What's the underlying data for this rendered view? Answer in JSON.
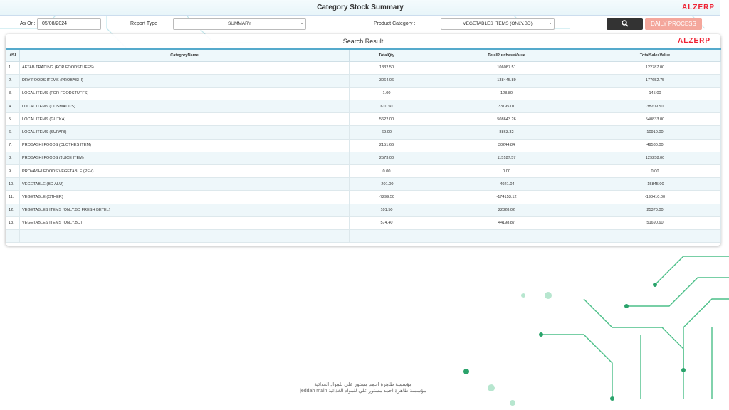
{
  "header": {
    "title": "Category Stock Summary",
    "logo": "ALZERP"
  },
  "filters": {
    "as_on_label": "As On:",
    "as_on_value": "05/08/2024",
    "report_type_label": "Report Type",
    "report_type_value": "SUMMARY",
    "product_category_label": "Product Category :",
    "product_category_value": "VEGETABLES ITEMS (ONLY.BD)",
    "daily_process": "DAILY PROCESS"
  },
  "panel": {
    "title": "Search Result",
    "logo": "ALZERP"
  },
  "table": {
    "columns": [
      "#Sl",
      "CategoryName",
      "TotalQty",
      "TotalPurchaseValue",
      "TotalSalesValue"
    ],
    "rows": [
      [
        "1.",
        "AFTAB TRADING (FOR FOODSTUFFS)",
        "1332.50",
        "106087.51",
        "122787.00"
      ],
      [
        "2.",
        "DRY FOODS ITEMS (PROBASHI)",
        "3064.06",
        "138445.89",
        "177652.75"
      ],
      [
        "3.",
        "LOCAL ITEMS (FOR FOODSTUFFS)",
        "1.00",
        "128.80",
        "145.00"
      ],
      [
        "4.",
        "LOCAL ITEMS (COSMATICS)",
        "610.50",
        "33195.01",
        "38209.50"
      ],
      [
        "5.",
        "LOCAL ITEMS (GUTKA)",
        "5622.00",
        "508643.26",
        "540833.00"
      ],
      [
        "6.",
        "LOCAL ITEMS (SUPARI)",
        "69.00",
        "8863.32",
        "10910.00"
      ],
      [
        "7.",
        "PROBASHI FOODS (CLOTHES ITEM)",
        "2151.66",
        "30244.84",
        "49530.00"
      ],
      [
        "8.",
        "PROBASHI FOODS (JUICE ITEM)",
        "2573.00",
        "115187.57",
        "129258.00"
      ],
      [
        "9.",
        "PROVASHI FOODS VEGETABLE (PFV)",
        "0.00",
        "0.00",
        "0.00"
      ],
      [
        "10.",
        "VEGETABLE (BD ALU)",
        "-201.00",
        "-4021.04",
        "-15845.00"
      ],
      [
        "11.",
        "VEGETABLE (OTHER)",
        "-7299.50",
        "-174153.12",
        "-198410.00"
      ],
      [
        "12.",
        "VEGETABLES ITEMS (ONLY.BD FRESH BETEL)",
        "101.50",
        "22328.02",
        "25370.00"
      ],
      [
        "13.",
        "VEGETABLES ITEMS (ONLY.BD)",
        "574.40",
        "44198.87",
        "51690.60"
      ]
    ]
  },
  "footer": {
    "line1": "مؤسسة طاهرة احمد مستور علي للمواد الغذائية",
    "line2": "مؤسسة طاهرة احمد مستور علي للمواد الغذائية jeddah main"
  }
}
